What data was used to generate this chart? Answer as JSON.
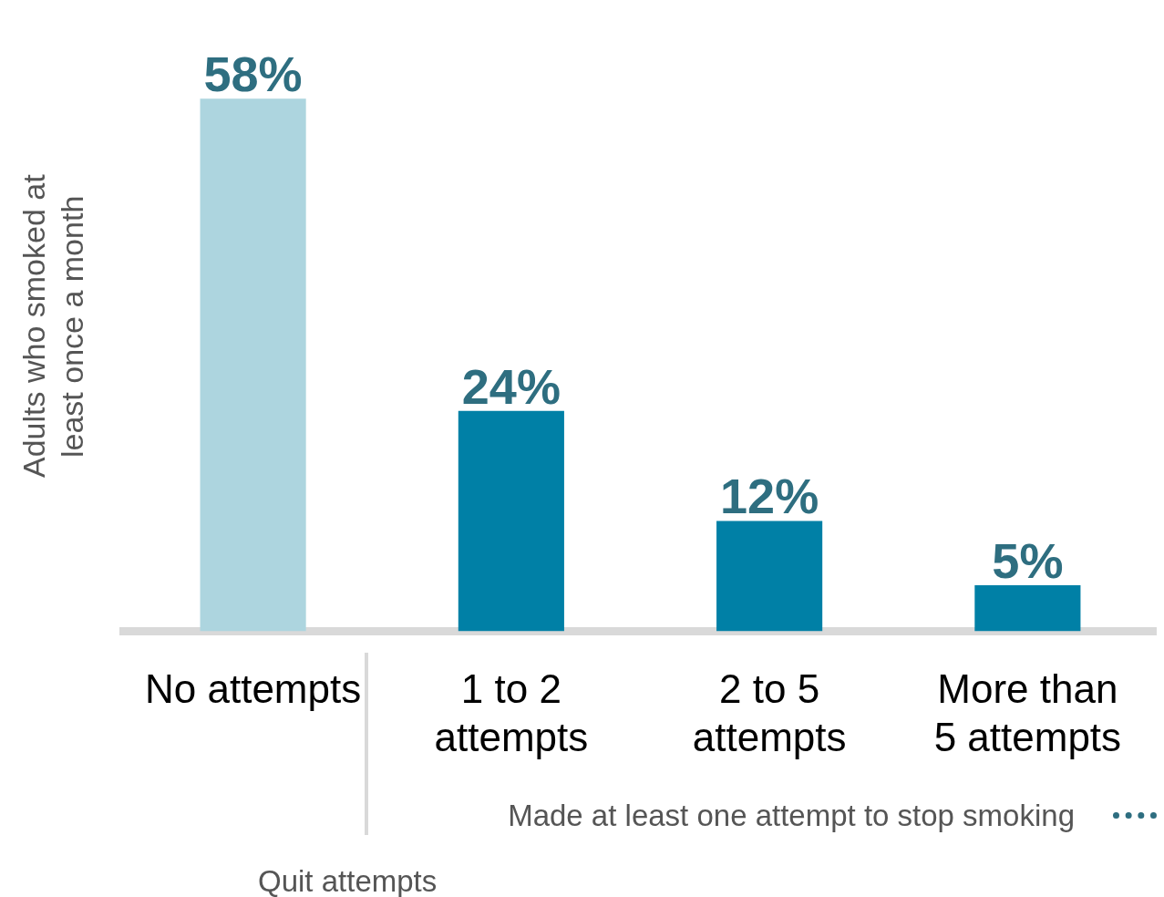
{
  "chart_data": {
    "type": "bar",
    "categories": [
      "No attempts",
      "1 to 2 attempts",
      "2 to 5 attempts",
      "More than 5 attempts"
    ],
    "values": [
      58,
      24,
      12,
      5
    ],
    "colors": [
      "#add5df",
      "#0080a6",
      "#0080a6",
      "#0080a6"
    ],
    "data_labels": true,
    "value_labels": [
      "58%",
      "24%",
      "12%",
      "5%"
    ],
    "xlabel": "Quit attempts",
    "ylabel": "Adults who smoked at least once a month",
    "annotations": [
      "Made at least one attempt to stop smoking"
    ],
    "grid": false,
    "legend": false
  }
}
